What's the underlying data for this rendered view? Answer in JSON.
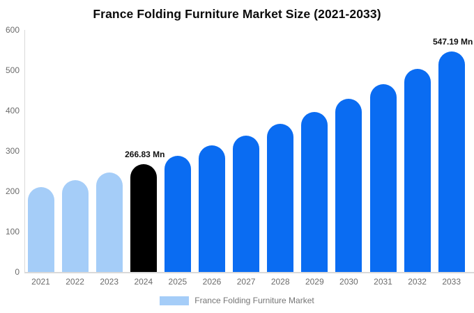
{
  "title": "France Folding Furniture Market Size (2021-2033)",
  "legend": {
    "label": "France Folding Furniture Market",
    "swatch_color": "#a5cdf8"
  },
  "colors": {
    "historical_bar": "#a5cdf8",
    "base_year_bar": "#000000",
    "forecast_bar": "#0a6cf2",
    "axis_line": "#d9d9d9",
    "tick_text": "#6b6b6b",
    "label_text": "#111111"
  },
  "chart_data": {
    "type": "bar",
    "title": "France Folding Furniture Market Size (2021-2033)",
    "categories": [
      "2021",
      "2022",
      "2023",
      "2024",
      "2025",
      "2026",
      "2027",
      "2028",
      "2029",
      "2030",
      "2031",
      "2032",
      "2033"
    ],
    "values": [
      210,
      228,
      246,
      266.83,
      288,
      313,
      338,
      367,
      397,
      429,
      465,
      503,
      547.19
    ],
    "bar_colors": [
      "#a5cdf8",
      "#a5cdf8",
      "#a5cdf8",
      "#000000",
      "#0a6cf2",
      "#0a6cf2",
      "#0a6cf2",
      "#0a6cf2",
      "#0a6cf2",
      "#0a6cf2",
      "#0a6cf2",
      "#0a6cf2",
      "#0a6cf2"
    ],
    "data_labels": [
      null,
      null,
      null,
      "266.83 Mn",
      null,
      null,
      null,
      null,
      null,
      null,
      null,
      null,
      "547.19 Mn"
    ],
    "xlabel": "",
    "ylabel": "",
    "ylim": [
      0,
      600
    ],
    "yticks": [
      0,
      100,
      200,
      300,
      400,
      500,
      600
    ],
    "grid": false,
    "legend_position": "bottom",
    "unit": "Mn"
  }
}
